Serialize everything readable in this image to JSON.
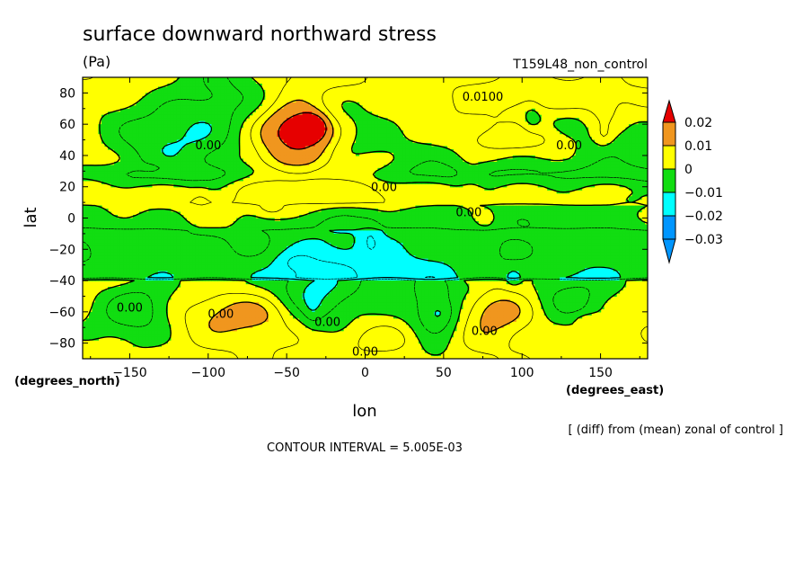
{
  "chart_data": {
    "type": "contour",
    "title": "surface downward northward stress",
    "units": "(Pa)",
    "dataset": "T159L48_non_control",
    "xlabel": "lon",
    "ylabel": "lat",
    "x_units_label": "(degrees_east)",
    "y_units_label": "(degrees_north)",
    "xlim": [
      -180,
      180
    ],
    "ylim": [
      -90,
      90
    ],
    "x_ticks": [
      -150,
      -100,
      -50,
      0,
      50,
      100,
      150
    ],
    "y_ticks": [
      80,
      60,
      40,
      20,
      0,
      -20,
      -40,
      -60,
      -80
    ],
    "note": "[ (diff) from (mean) zonal of control ]",
    "contour_interval": "CONTOUR INTERVAL = 5.005E-03",
    "contour_labels": [
      {
        "lon": 75,
        "lat": 78,
        "text": "0.0100"
      },
      {
        "lon": -100,
        "lat": 47,
        "text": "0.00"
      },
      {
        "lon": 130,
        "lat": 47,
        "text": "0.00"
      },
      {
        "lon": 12,
        "lat": 20,
        "text": "0.00"
      },
      {
        "lon": 66,
        "lat": 4,
        "text": "0.00"
      },
      {
        "lon": -150,
        "lat": -57,
        "text": "0.00"
      },
      {
        "lon": -92,
        "lat": -61,
        "text": "0.00"
      },
      {
        "lon": -24,
        "lat": -66,
        "text": "0.00"
      },
      {
        "lon": 76,
        "lat": -72,
        "text": "0.00"
      },
      {
        "lon": 0,
        "lat": -85,
        "text": "0.00"
      }
    ],
    "colorbar": {
      "levels": [
        0.02,
        0.01,
        0,
        -0.01,
        -0.02,
        -0.03
      ],
      "labels": [
        "0.02",
        "0.01",
        "0",
        "−0.01",
        "−0.02",
        "−0.03"
      ],
      "colors": [
        "#e60000",
        "#f0961e",
        "#ffff00",
        "#11dd11",
        "#00ffff",
        "#0096ff"
      ]
    },
    "colors": {
      "above_0.02": "#e60000",
      "0.01_to_0.02": "#f0961e",
      "0_to_0.01": "#ffff00",
      "-0.01_to_0": "#11dd11",
      "-0.02_to_-0.01": "#00ffff",
      "below_-0.02": "#0096ff"
    },
    "features": [
      {
        "lon": -50,
        "lat": 53,
        "w": 60,
        "h": 48,
        "v": 0.012
      },
      {
        "lon": -40,
        "lat": 56,
        "w": 20,
        "h": 14,
        "v": 0.024
      },
      {
        "lon": -35,
        "lat": 58,
        "w": 7,
        "h": 6,
        "v": 0.05
      },
      {
        "lon": -85,
        "lat": 75,
        "w": 35,
        "h": 35,
        "v": -0.012
      },
      {
        "lon": -105,
        "lat": 52,
        "w": 36,
        "h": 30,
        "v": -0.011
      },
      {
        "lon": -140,
        "lat": 50,
        "w": 30,
        "h": 30,
        "v": -0.007
      },
      {
        "lon": -20,
        "lat": 60,
        "w": 30,
        "h": 22,
        "v": -0.011
      },
      {
        "lon": 25,
        "lat": 40,
        "w": 90,
        "h": 16,
        "v": -0.006
      },
      {
        "lon": 100,
        "lat": 50,
        "w": 40,
        "h": 10,
        "v": 0.008
      },
      {
        "lon": 110,
        "lat": 78,
        "w": 70,
        "h": 12,
        "v": 0.008
      },
      {
        "lon": 150,
        "lat": 50,
        "w": 60,
        "h": 40,
        "v": -0.006
      },
      {
        "lon": 20,
        "lat": 75,
        "w": 45,
        "h": 20,
        "v": -0.005
      },
      {
        "lon": -70,
        "lat": -61,
        "w": 42,
        "h": 14,
        "v": 0.012
      },
      {
        "lon": 84,
        "lat": -60,
        "w": 26,
        "h": 14,
        "v": 0.012
      },
      {
        "lon": -145,
        "lat": -58,
        "w": 26,
        "h": 18,
        "v": -0.013
      },
      {
        "lon": -33,
        "lat": -50,
        "w": 26,
        "h": 26,
        "v": -0.012
      },
      {
        "lon": 45,
        "lat": -67,
        "w": 20,
        "h": 26,
        "v": -0.012
      },
      {
        "lon": 132,
        "lat": -50,
        "w": 28,
        "h": 18,
        "v": -0.011
      },
      {
        "lon": -10,
        "lat": -40,
        "w": 60,
        "h": 30,
        "v": -0.006
      },
      {
        "lon": 10,
        "lat": -78,
        "w": 70,
        "h": 12,
        "v": 0.006
      },
      {
        "lon": 0,
        "lat": 0,
        "w": 60,
        "h": 10,
        "v": -0.004
      }
    ]
  }
}
